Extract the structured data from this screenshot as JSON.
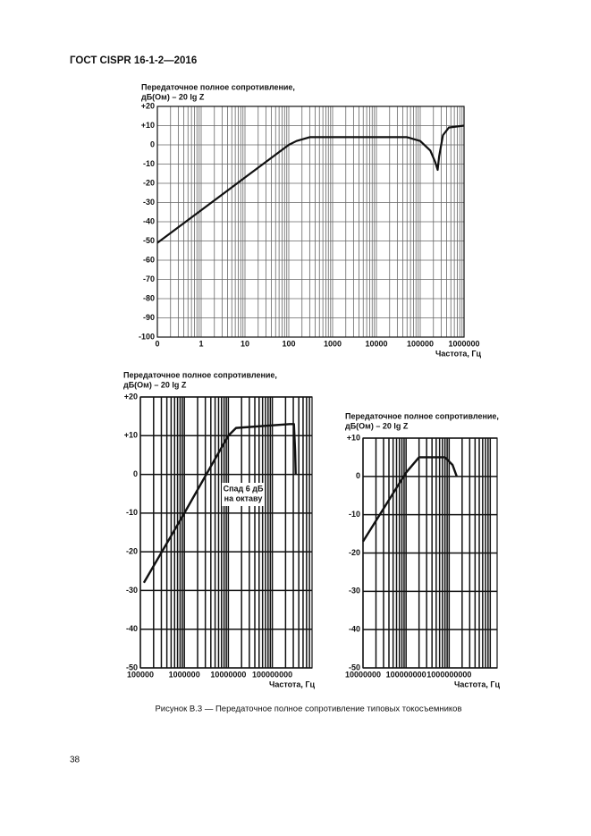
{
  "header": "ГОСТ CISPR 16-1-2—2016",
  "caption": "Рисунок В.3 — Передаточное полное сопротивление типовых токосъемников",
  "page_number": "38",
  "chart_data": [
    {
      "type": "line",
      "ylabel": [
        "Передаточное полное сопротивление,",
        "дБ(Ом) – 20 lg Z"
      ],
      "xlabel": "Частота, Гц",
      "xscale": "log",
      "xlim": [
        0.1,
        1000000
      ],
      "xticks": [
        {
          "value": 0.1,
          "label": "0"
        },
        1,
        10,
        100,
        1000,
        10000,
        100000,
        1000000
      ],
      "ylim": [
        -100,
        20
      ],
      "yticks": [
        {
          "value": 20,
          "label": "+20"
        },
        {
          "value": 10,
          "label": "+10"
        },
        0,
        -10,
        -20,
        -30,
        -40,
        -50,
        -60,
        -70,
        -80,
        -90,
        -100
      ],
      "grid": true,
      "series": [
        {
          "color": "#111111",
          "x": [
            0.1,
            1,
            10,
            100,
            150,
            300,
            10000,
            50000,
            100000,
            170000,
            220000,
            250000,
            270000,
            330000,
            450000,
            1000000
          ],
          "values": [
            -51,
            -34,
            -17,
            0,
            2,
            4,
            4,
            4,
            2,
            -3,
            -9,
            -13,
            -6,
            5,
            9,
            10
          ]
        }
      ]
    },
    {
      "type": "line",
      "ylabel": [
        "Передаточное полное сопротивление,",
        "дБ(Ом) – 20 lg Z"
      ],
      "xlabel": "Частота, Гц",
      "xscale": "log",
      "xlim": [
        100000,
        800000000
      ],
      "xticks": [
        100000,
        1000000,
        10000000,
        100000000
      ],
      "ylim": [
        -50,
        20
      ],
      "yticks": [
        {
          "value": 20,
          "label": "+20"
        },
        {
          "value": 10,
          "label": "+10"
        },
        0,
        -10,
        -20,
        -30,
        -40,
        -50
      ],
      "grid": true,
      "annotation": [
        "Спад 6 дБ",
        "на октаву"
      ],
      "series": [
        {
          "color": "#111111",
          "x": [
            120000,
            1000000,
            5000000,
            10000000,
            15000000,
            250000000,
            310000000,
            330000000,
            340000000
          ],
          "values": [
            -28,
            -10,
            4,
            10,
            12,
            13,
            13,
            6,
            0
          ]
        }
      ]
    },
    {
      "type": "line",
      "ylabel": [
        "Передаточное полное сопротивление,",
        "дБ(Ом) – 20 lg Z"
      ],
      "xlabel": "Частота, Гц",
      "xscale": "log",
      "xlim": [
        10000000,
        13000000000
      ],
      "xticks": [
        10000000,
        100000000,
        1000000000
      ],
      "ylim": [
        -50,
        10
      ],
      "yticks": [
        {
          "value": 10,
          "label": "+10"
        },
        0,
        -10,
        -20,
        -30,
        -40,
        -50
      ],
      "grid": true,
      "series": [
        {
          "color": "#111111",
          "x": [
            10000000,
            100000000,
            200000000,
            800000000,
            1200000000,
            1500000000
          ],
          "values": [
            -17,
            1,
            5,
            5,
            3,
            0
          ]
        }
      ]
    }
  ]
}
